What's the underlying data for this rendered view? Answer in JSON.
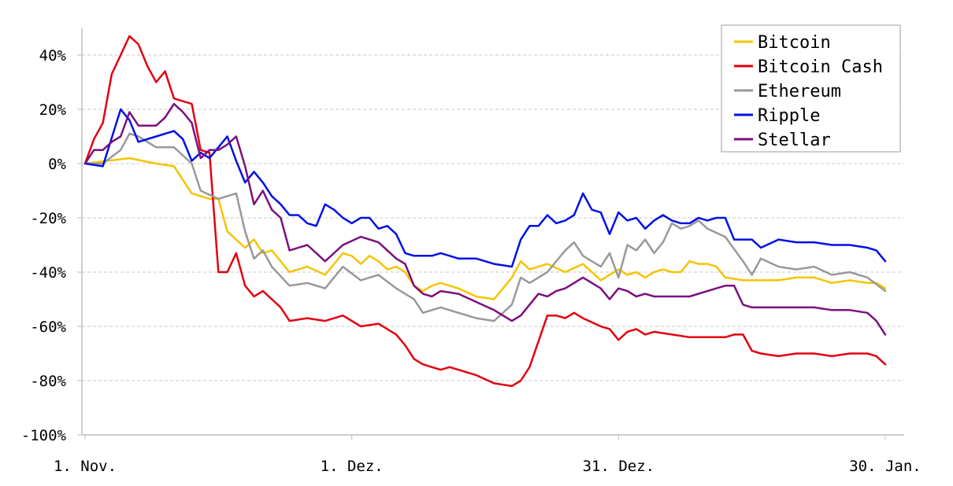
{
  "chart_data": {
    "type": "line",
    "title": "",
    "xlabel": "",
    "ylabel": "",
    "ylim": [
      -100,
      50
    ],
    "xlim": [
      0,
      90
    ],
    "y_ticks": [
      {
        "value": 40,
        "label": "40%"
      },
      {
        "value": 20,
        "label": "20%"
      },
      {
        "value": 0,
        "label": "0%"
      },
      {
        "value": -20,
        "label": "-20%"
      },
      {
        "value": -40,
        "label": "-40%"
      },
      {
        "value": -60,
        "label": "-60%"
      },
      {
        "value": -80,
        "label": "-80%"
      },
      {
        "value": -100,
        "label": "-100%"
      }
    ],
    "x_ticks": [
      {
        "value": 0,
        "label": "1. Nov."
      },
      {
        "value": 30,
        "label": "1. Dez."
      },
      {
        "value": 60,
        "label": "31. Dez."
      },
      {
        "value": 90,
        "label": "30. Jan."
      }
    ],
    "grid": "horizontal-dashed",
    "legend_position": "top-right",
    "series": [
      {
        "name": "Bitcoin",
        "color": "#f5c400",
        "x": [
          0,
          5,
          8,
          10,
          12,
          14,
          15,
          16,
          18,
          19,
          20,
          21,
          23,
          25,
          27,
          29,
          30,
          31,
          32,
          33,
          34,
          35,
          36,
          37,
          38,
          39,
          40,
          42,
          44,
          46,
          48,
          49,
          50,
          52,
          54,
          56,
          58,
          60,
          61,
          62,
          63,
          64,
          65,
          66,
          67,
          68,
          69,
          70,
          71,
          72,
          74,
          76,
          78,
          80,
          82,
          84,
          86,
          88,
          89,
          90
        ],
        "y": [
          0,
          2,
          0,
          -1,
          -11,
          -13,
          -13,
          -25,
          -31,
          -28,
          -33,
          -32,
          -40,
          -38,
          -41,
          -33,
          -34,
          -37,
          -34,
          -36,
          -39,
          -38,
          -40,
          -45,
          -47,
          -45,
          -44,
          -46,
          -49,
          -50,
          -42,
          -36,
          -39,
          -37,
          -40,
          -37,
          -43,
          -39,
          -41,
          -40,
          -42,
          -40,
          -39,
          -40,
          -40,
          -36,
          -37,
          -37,
          -38,
          -42,
          -43,
          -43,
          -43,
          -42,
          -42,
          -44,
          -43,
          -44,
          -44,
          -46
        ]
      },
      {
        "name": "Bitcoin Cash",
        "color": "#e3000f",
        "x": [
          0,
          1,
          2,
          3,
          4,
          5,
          6,
          7,
          8,
          9,
          10,
          11,
          12,
          13,
          14,
          15,
          16,
          17,
          18,
          19,
          20,
          21,
          22,
          23,
          25,
          27,
          29,
          31,
          33,
          35,
          36,
          37,
          38,
          39,
          40,
          41,
          42,
          44,
          46,
          48,
          49,
          50,
          52,
          53,
          54,
          55,
          56,
          58,
          59,
          60,
          61,
          62,
          63,
          64,
          66,
          68,
          70,
          72,
          73,
          74,
          75,
          76,
          78,
          80,
          82,
          84,
          86,
          88,
          89,
          90
        ],
        "y": [
          0,
          9,
          15,
          33,
          40,
          47,
          44,
          36,
          30,
          34,
          24,
          23,
          22,
          5,
          4,
          -40,
          -40,
          -33,
          -45,
          -49,
          -47,
          -50,
          -53,
          -58,
          -57,
          -58,
          -56,
          -60,
          -59,
          -63,
          -67,
          -72,
          -74,
          -75,
          -76,
          -75,
          -76,
          -78,
          -81,
          -82,
          -80,
          -75,
          -56,
          -56,
          -57,
          -55,
          -57,
          -60,
          -61,
          -65,
          -62,
          -61,
          -63,
          -62,
          -63,
          -64,
          -64,
          -64,
          -63,
          -63,
          -69,
          -70,
          -71,
          -70,
          -70,
          -71,
          -70,
          -70,
          -71,
          -74
        ]
      },
      {
        "name": "Ethereum",
        "color": "#999999",
        "x": [
          0,
          2,
          4,
          5,
          6,
          8,
          10,
          12,
          13,
          15,
          17,
          18,
          19,
          20,
          21,
          23,
          25,
          27,
          29,
          31,
          33,
          35,
          36,
          37,
          38,
          39,
          40,
          42,
          44,
          46,
          48,
          49,
          50,
          52,
          54,
          55,
          56,
          58,
          59,
          60,
          61,
          62,
          63,
          64,
          65,
          66,
          67,
          68,
          69,
          70,
          72,
          74,
          75,
          76,
          78,
          80,
          82,
          84,
          86,
          88,
          90
        ],
        "y": [
          0,
          0,
          5,
          11,
          10,
          6,
          6,
          0,
          -10,
          -13,
          -11,
          -25,
          -35,
          -32,
          -38,
          -45,
          -44,
          -46,
          -38,
          -43,
          -41,
          -46,
          -48,
          -50,
          -55,
          -54,
          -53,
          -55,
          -57,
          -58,
          -52,
          -42,
          -44,
          -40,
          -32,
          -29,
          -34,
          -38,
          -33,
          -42,
          -30,
          -32,
          -28,
          -33,
          -29,
          -22,
          -24,
          -23,
          -21,
          -24,
          -27,
          -36,
          -41,
          -35,
          -38,
          -39,
          -38,
          -41,
          -40,
          -42,
          -47
        ]
      },
      {
        "name": "Ripple",
        "color": "#0010e6",
        "x": [
          0,
          2,
          4,
          5,
          6,
          7,
          8,
          10,
          11,
          12,
          13,
          14,
          15,
          16,
          17,
          18,
          19,
          20,
          21,
          22,
          23,
          24,
          25,
          26,
          27,
          28,
          29,
          30,
          31,
          32,
          33,
          34,
          35,
          36,
          37,
          38,
          39,
          40,
          41,
          42,
          44,
          46,
          48,
          49,
          50,
          51,
          52,
          53,
          54,
          55,
          56,
          57,
          58,
          59,
          60,
          61,
          62,
          63,
          64,
          65,
          66,
          67,
          68,
          69,
          70,
          71,
          72,
          73,
          74,
          75,
          76,
          78,
          80,
          82,
          84,
          86,
          88,
          89,
          90
        ],
        "y": [
          0,
          -1,
          20,
          16,
          8,
          9,
          10,
          12,
          9,
          1,
          4,
          2,
          6,
          10,
          1,
          -7,
          -3,
          -7,
          -12,
          -15,
          -19,
          -19,
          -22,
          -23,
          -15,
          -17,
          -20,
          -22,
          -20,
          -20,
          -24,
          -23,
          -26,
          -33,
          -34,
          -34,
          -34,
          -33,
          -34,
          -35,
          -35,
          -37,
          -38,
          -28,
          -23,
          -23,
          -19,
          -22,
          -21,
          -19,
          -11,
          -17,
          -18,
          -26,
          -18,
          -21,
          -20,
          -24,
          -21,
          -19,
          -21,
          -22,
          -22,
          -20,
          -21,
          -20,
          -20,
          -28,
          -28,
          -28,
          -31,
          -28,
          -29,
          -29,
          -30,
          -30,
          -31,
          -32,
          -36
        ]
      },
      {
        "name": "Stellar",
        "color": "#7b0f7f",
        "x": [
          0,
          1,
          2,
          3,
          4,
          5,
          6,
          7,
          8,
          9,
          10,
          11,
          12,
          13,
          14,
          15,
          16,
          17,
          18,
          19,
          20,
          21,
          22,
          23,
          25,
          27,
          29,
          31,
          33,
          35,
          36,
          37,
          38,
          39,
          40,
          42,
          44,
          46,
          48,
          49,
          50,
          51,
          52,
          53,
          54,
          55,
          56,
          58,
          59,
          60,
          61,
          62,
          63,
          64,
          66,
          68,
          70,
          72,
          73,
          74,
          75,
          76,
          78,
          80,
          82,
          84,
          86,
          88,
          89,
          90
        ],
        "y": [
          0,
          5,
          5,
          8,
          10,
          19,
          14,
          14,
          14,
          17,
          22,
          19,
          15,
          2,
          5,
          5,
          7,
          10,
          -1,
          -15,
          -10,
          -17,
          -20,
          -32,
          -30,
          -36,
          -30,
          -27,
          -29,
          -35,
          -37,
          -45,
          -48,
          -49,
          -47,
          -48,
          -51,
          -54,
          -58,
          -56,
          -52,
          -48,
          -49,
          -47,
          -46,
          -44,
          -42,
          -46,
          -50,
          -46,
          -47,
          -49,
          -48,
          -49,
          -49,
          -49,
          -47,
          -45,
          -45,
          -52,
          -53,
          -53,
          -53,
          -53,
          -53,
          -54,
          -54,
          -55,
          -58,
          -63
        ]
      }
    ]
  }
}
